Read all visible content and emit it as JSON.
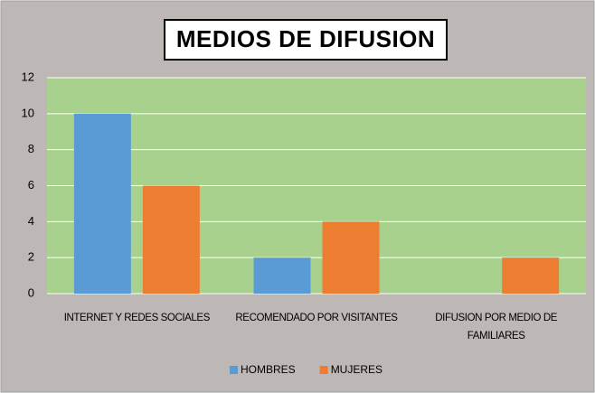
{
  "chart_data": {
    "type": "bar",
    "title": "MEDIOS DE DIFUSION",
    "categories": [
      "INTERNET Y REDES SOCIALES",
      "RECOMENDADO POR VISITANTES",
      "DIFUSION POR MEDIO DE FAMILIARES"
    ],
    "series": [
      {
        "name": "HOMBRES",
        "color": "#5b9bd5",
        "values": [
          10,
          2,
          0
        ]
      },
      {
        "name": "MUJERES",
        "color": "#ed7d31",
        "values": [
          6,
          4,
          2
        ]
      }
    ],
    "ylim": [
      0,
      12
    ],
    "yticks": [
      0,
      2,
      4,
      6,
      8,
      10,
      12
    ],
    "grid": true,
    "legend": "bottom"
  }
}
